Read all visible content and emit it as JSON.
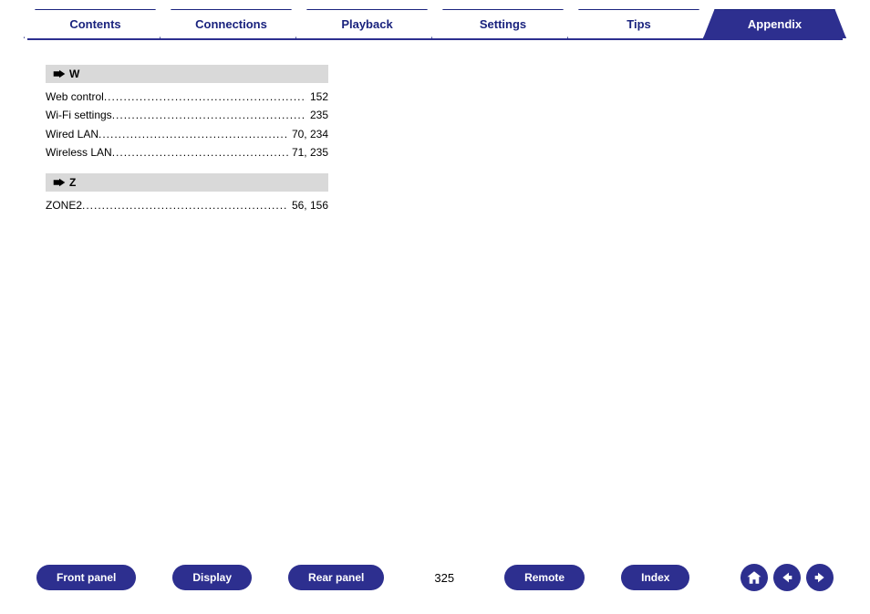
{
  "colors": {
    "primary": "#2d2f8f",
    "header_bg": "#d9d9d9",
    "text": "#000000",
    "tab_text": "#1a237e",
    "white": "#ffffff"
  },
  "tabs": [
    {
      "label": "Contents",
      "active": false
    },
    {
      "label": "Connections",
      "active": false
    },
    {
      "label": "Playback",
      "active": false
    },
    {
      "label": "Settings",
      "active": false
    },
    {
      "label": "Tips",
      "active": false
    },
    {
      "label": "Appendix",
      "active": true
    }
  ],
  "sections": [
    {
      "letter": "W",
      "entries": [
        {
          "label": "Web control",
          "page": "152"
        },
        {
          "label": "Wi-Fi settings",
          "page": "235"
        },
        {
          "label": "Wired LAN",
          "page": "70, 234"
        },
        {
          "label": "Wireless LAN",
          "page": "71, 235"
        }
      ]
    },
    {
      "letter": "Z",
      "entries": [
        {
          "label": "ZONE2",
          "page": "56, 156"
        }
      ]
    }
  ],
  "footer_buttons": [
    {
      "label": "Front panel"
    },
    {
      "label": "Display"
    },
    {
      "label": "Rear panel"
    },
    {
      "label": "Remote"
    },
    {
      "label": "Index"
    }
  ],
  "page_number": "325",
  "nav_icons": [
    "home",
    "back",
    "forward"
  ]
}
